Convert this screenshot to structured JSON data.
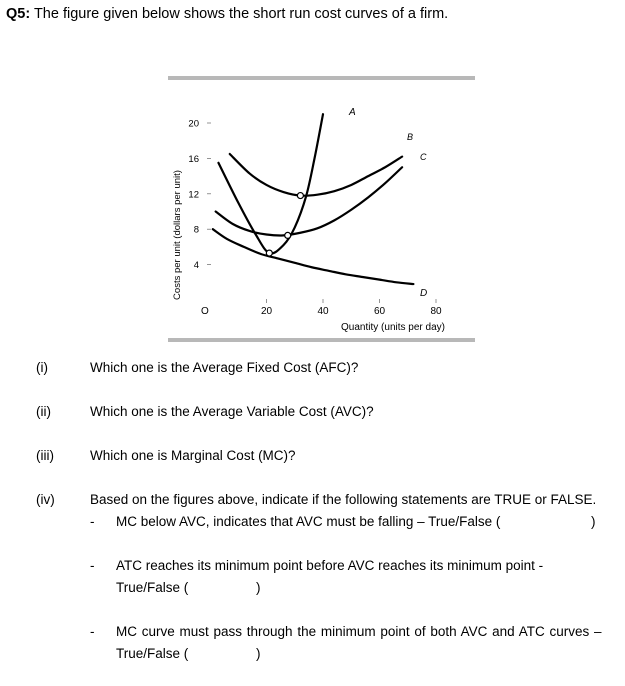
{
  "question": {
    "number": "Q5:",
    "title": " The figure given below shows the short run cost curves of a firm."
  },
  "figure": {
    "ylabel": "Costs per unit (dollars per unit)",
    "xlabel": "Quantity (units per day)",
    "y_ticks": [
      "4",
      "8",
      "12",
      "16",
      "20"
    ],
    "x_ticks": [
      "20",
      "40",
      "60",
      "80"
    ],
    "origin": "O",
    "curve_labels": [
      "A",
      "B",
      "C",
      "D"
    ]
  },
  "chart_data": {
    "type": "line",
    "xlabel": "Quantity (units per day)",
    "ylabel": "Costs per unit (dollars per unit)",
    "xlim": [
      0,
      85
    ],
    "ylim": [
      0,
      22
    ],
    "series": [
      {
        "name": "A",
        "x": [
          3,
          10,
          16,
          21,
          26,
          30,
          34,
          37,
          40
        ],
        "y": [
          15.5,
          11,
          7.5,
          5.3,
          6.2,
          8.2,
          11.7,
          16,
          21
        ]
      },
      {
        "name": "B",
        "x": [
          7,
          14,
          20,
          26,
          32,
          38,
          44,
          50,
          56,
          62,
          68
        ],
        "y": [
          16.5,
          14.3,
          13,
          12.2,
          11.8,
          11.9,
          12.3,
          13,
          14,
          15,
          16.2
        ]
      },
      {
        "name": "C",
        "x": [
          2,
          8,
          14,
          20,
          26,
          32,
          38,
          44,
          50,
          56,
          62,
          68
        ],
        "y": [
          10,
          8.6,
          7.8,
          7.4,
          7.3,
          7.6,
          8.1,
          9,
          10.2,
          11.6,
          13.2,
          15
        ]
      },
      {
        "name": "D",
        "x": [
          1,
          6,
          12,
          18,
          24,
          30,
          36,
          42,
          48,
          54,
          60,
          66,
          72
        ],
        "y": [
          8,
          6.9,
          6,
          5.2,
          4.7,
          4.2,
          3.7,
          3.3,
          2.9,
          2.6,
          2.3,
          2.0,
          1.8
        ]
      }
    ],
    "intersections": [
      {
        "x": 21,
        "y": 5.3
      },
      {
        "x": 27.5,
        "y": 7.3
      },
      {
        "x": 32,
        "y": 11.8
      }
    ]
  },
  "items": [
    {
      "num": "(i)",
      "text": "Which one is the Average Fixed Cost (AFC)?"
    },
    {
      "num": "(ii)",
      "text": "Which one is the Average Variable Cost (AVC)?"
    },
    {
      "num": "(iii)",
      "text": "Which one is Marginal Cost (MC)?"
    },
    {
      "num": "(iv)",
      "text": "Based on the figures above, indicate if the following statements are TRUE or FALSE."
    }
  ],
  "statements": [
    {
      "dash": "-",
      "line1": "MC below AVC, indicates that AVC must be falling – True/False (",
      "close": ")"
    },
    {
      "dash": "-",
      "line1": "ATC reaches its minimum point before AVC reaches its minimum point -",
      "line2": "True/False (",
      "close": ")"
    },
    {
      "dash": "-",
      "line1": "MC  curve  must  pass  through  the  minimum  point  of  both  AVC  and  ATC  curves –",
      "line2": "True/False (",
      "close": ")"
    }
  ]
}
